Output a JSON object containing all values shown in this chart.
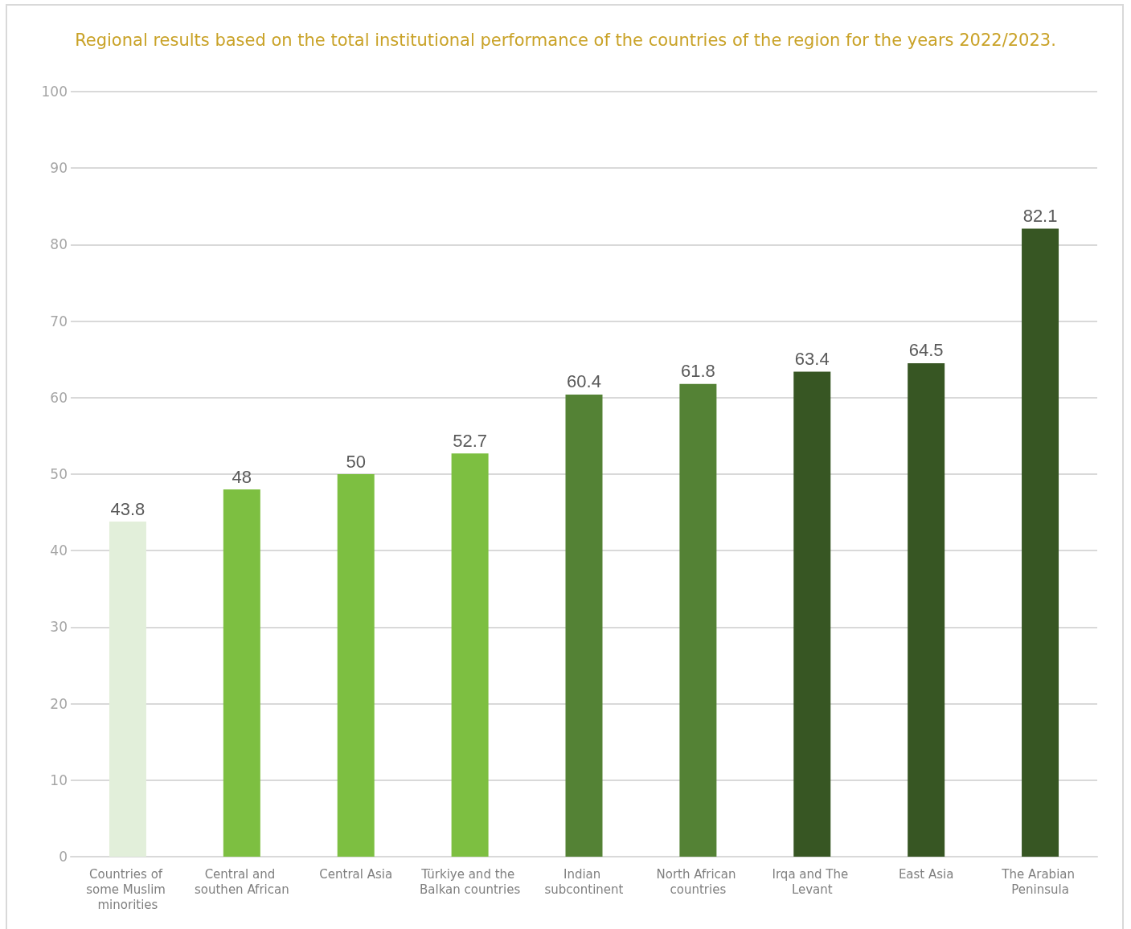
{
  "chart_data": {
    "type": "bar",
    "title": "Regional results based on the total institutional performance of the countries of the region for the years 2022/2023.",
    "categories": [
      "Countries of some Muslim minorities",
      "Central and southen African",
      "Central Asia",
      "Türkiye and the Balkan countries",
      "Indian subcontinent",
      "North African countries",
      "Irqa and The Levant",
      "East Asia",
      "The Arabian Peninsula"
    ],
    "values": [
      43.8,
      48,
      50,
      52.7,
      60.4,
      61.8,
      63.4,
      64.5,
      82.1
    ],
    "colors": [
      "#e2efda",
      "#7dbf41",
      "#7dbf41",
      "#7dbf41",
      "#548235",
      "#548235",
      "#375623",
      "#375623",
      "#375623"
    ],
    "ylim": [
      0,
      100
    ],
    "yticks": [
      0,
      10,
      20,
      30,
      40,
      50,
      60,
      70,
      80,
      90,
      100
    ],
    "grid": "y",
    "data_labels": true
  }
}
